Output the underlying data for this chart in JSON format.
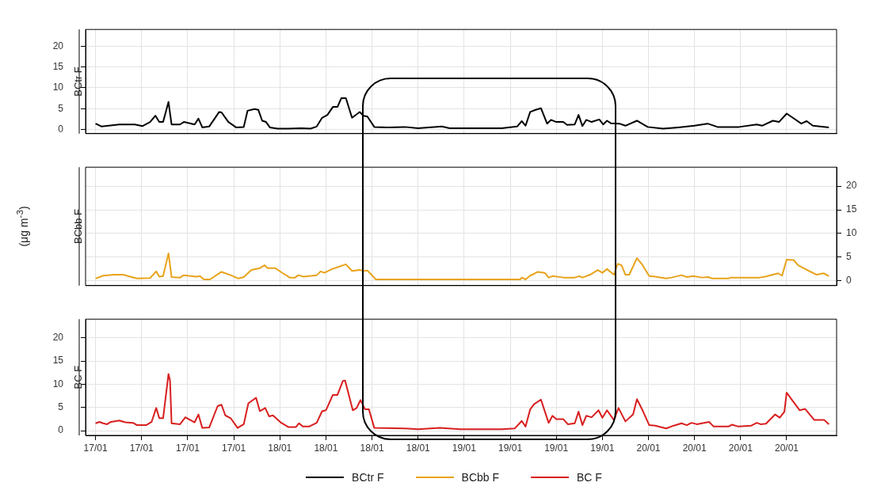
{
  "chart_data": [
    {
      "type": "line",
      "title": "BCtr F",
      "xlim": [
        "--01-16T22:42",
        "--01-21T00:30"
      ],
      "ylim": [
        -1,
        24
      ],
      "yticks": [
        0,
        5,
        10,
        15,
        20
      ],
      "xticks": [
        {
          "value": "--01-17T00:00",
          "label": "17/01"
        },
        {
          "value": "--01-17T06:00",
          "label": "17/01"
        },
        {
          "value": "--01-17T12:00",
          "label": "17/01"
        },
        {
          "value": "--01-17T18:00",
          "label": "17/01"
        },
        {
          "value": "--01-18T00:00",
          "label": "18/01"
        },
        {
          "value": "--01-18T06:00",
          "label": "18/01"
        },
        {
          "value": "--01-18T12:00",
          "label": "18/01"
        },
        {
          "value": "--01-18T18:00",
          "label": "18/01"
        },
        {
          "value": "--01-19T00:00",
          "label": "19/01"
        },
        {
          "value": "--01-19T06:00",
          "label": "19/01"
        },
        {
          "value": "--01-19T12:00",
          "label": "19/01"
        },
        {
          "value": "--01-19T18:00",
          "label": "19/01"
        },
        {
          "value": "--01-20T00:00",
          "label": "20/01"
        },
        {
          "value": "--01-20T06:00",
          "label": "20/01"
        },
        {
          "value": "--01-20T12:00",
          "label": "20/01"
        },
        {
          "value": "--01-20T18:00",
          "label": "20/01"
        }
      ],
      "grid": true,
      "tick_labels": "y",
      "marker": "none",
      "line_style": "solid",
      "legend": "bottom",
      "series": [
        {
          "name": "BCtr F",
          "color": "#000000",
          "x": [
            "--01-17T00:00",
            "--01-17T00:48",
            "--01-17T03:06",
            "--01-17T05:06",
            "--01-17T06:06",
            "--01-17T07:06",
            "--01-17T07:48",
            "--01-17T08:18",
            "--01-17T08:48",
            "--01-17T09:30",
            "--01-17T09:54",
            "--01-17T11:00",
            "--01-17T11:30",
            "--01-17T12:54",
            "--01-17T13:24",
            "--01-17T13:54",
            "--01-17T14:48",
            "--01-17T16:06",
            "--01-17T16:24",
            "--01-17T17:18",
            "--01-17T18:18",
            "--01-17T19:18",
            "--01-17T19:48",
            "--01-17T20:42",
            "--01-17T21:12",
            "--01-17T21:42",
            "--01-17T22:12",
            "--01-17T22:42",
            "--01-17T23:42",
            "--01-18T01:06",
            "--01-18T02:48",
            "--01-18T04:00",
            "--01-18T04:48",
            "--01-18T05:30",
            "--01-18T06:12",
            "--01-18T06:54",
            "--01-18T07:30",
            "--01-18T08:00",
            "--01-18T08:36",
            "--01-18T09:24",
            "--01-18T10:24",
            "--01-18T10:54",
            "--01-18T11:24",
            "--01-18T12:18",
            "--01-18T14:00",
            "--01-18T16:18",
            "--01-18T18:00",
            "--01-18T21:06",
            "--01-18T22:06",
            "--01-19T04:54",
            "--01-19T06:54",
            "--01-19T07:30",
            "--01-19T08:00",
            "--01-19T08:36",
            "--01-19T09:18",
            "--01-19T10:00",
            "--01-19T10:48",
            "--01-19T11:18",
            "--01-19T12:00",
            "--01-19T12:54",
            "--01-19T13:24",
            "--01-19T14:24",
            "--01-19T14:54",
            "--01-19T15:24",
            "--01-19T15:54",
            "--01-19T16:36",
            "--01-19T17:36",
            "--01-19T18:06",
            "--01-19T18:36",
            "--01-19T19:06",
            "--01-19T20:12",
            "--01-19T21:00",
            "--01-19T22:30",
            "--01-19T23:54",
            "--01-20T01:54",
            "--01-20T03:54",
            "--01-20T06:00",
            "--01-20T07:42",
            "--01-20T09:00",
            "--01-20T11:48",
            "--01-20T14:06",
            "--01-20T14:48",
            "--01-20T16:12",
            "--01-20T17:00",
            "--01-20T18:00",
            "--01-20T18:48",
            "--01-20T19:54",
            "--01-20T20:36",
            "--01-20T21:24",
            "--01-20T23:30"
          ],
          "values": [
            1.4,
            0.7,
            1.2,
            1.2,
            0.8,
            1.8,
            3.3,
            1.8,
            1.8,
            6.6,
            1.2,
            1.2,
            1.8,
            1.2,
            2.6,
            0.5,
            0.7,
            4.2,
            4.1,
            1.8,
            0.5,
            0.6,
            4.5,
            4.9,
            4.7,
            2.1,
            1.8,
            0.5,
            0.2,
            0.2,
            0.3,
            0.2,
            0.7,
            2.8,
            3.5,
            5.4,
            5.4,
            7.5,
            7.5,
            2.8,
            4.2,
            3.3,
            3.1,
            0.6,
            0.5,
            0.6,
            0.3,
            0.7,
            0.3,
            0.3,
            0.7,
            2.0,
            0.9,
            4.2,
            4.7,
            5.1,
            1.4,
            2.3,
            1.8,
            1.8,
            1.1,
            1.2,
            3.5,
            0.8,
            2.3,
            1.8,
            2.4,
            1.2,
            2.1,
            1.5,
            1.4,
            0.9,
            2.1,
            0.6,
            0.2,
            0.5,
            0.9,
            1.4,
            0.6,
            0.6,
            1.2,
            0.9,
            2.1,
            1.8,
            3.8,
            2.8,
            1.4,
            2.0,
            0.9,
            0.5
          ]
        }
      ]
    },
    {
      "type": "line",
      "title": "BCbb F",
      "ylabel": "(μg m$^{-3}$)",
      "xlim": [
        "--01-16T22:42",
        "--01-21T00:30"
      ],
      "y2lim": [
        -1,
        24
      ],
      "y2ticks": [
        0,
        5,
        10,
        15,
        20
      ],
      "xticks": [
        {
          "value": "--01-17T00:00",
          "label": "17/01"
        },
        {
          "value": "--01-17T06:00",
          "label": "17/01"
        },
        {
          "value": "--01-17T12:00",
          "label": "17/01"
        },
        {
          "value": "--01-17T18:00",
          "label": "17/01"
        },
        {
          "value": "--01-18T00:00",
          "label": "18/01"
        },
        {
          "value": "--01-18T06:00",
          "label": "18/01"
        },
        {
          "value": "--01-18T12:00",
          "label": "18/01"
        },
        {
          "value": "--01-18T18:00",
          "label": "18/01"
        },
        {
          "value": "--01-19T00:00",
          "label": "19/01"
        },
        {
          "value": "--01-19T06:00",
          "label": "19/01"
        },
        {
          "value": "--01-19T12:00",
          "label": "19/01"
        },
        {
          "value": "--01-19T18:00",
          "label": "19/01"
        },
        {
          "value": "--01-20T00:00",
          "label": "20/01"
        },
        {
          "value": "--01-20T06:00",
          "label": "20/01"
        },
        {
          "value": "--01-20T12:00",
          "label": "20/01"
        },
        {
          "value": "--01-20T18:00",
          "label": "20/01"
        }
      ],
      "grid": true,
      "tick_labels": "y",
      "marker": "none",
      "line_style": "solid",
      "legend": "bottom",
      "series": [
        {
          "name": "BCbb F",
          "color": "#e8a31c",
          "axis": "y2",
          "x": [
            "--01-17T00:00",
            "--01-17T01:00",
            "--01-17T02:24",
            "--01-17T03:36",
            "--01-17T04:42",
            "--01-17T05:24",
            "--01-17T07:06",
            "--01-17T07:54",
            "--01-17T08:18",
            "--01-17T08:48",
            "--01-17T09:30",
            "--01-17T09:54",
            "--01-17T11:00",
            "--01-17T11:30",
            "--01-17T13:06",
            "--01-17T13:36",
            "--01-17T14:06",
            "--01-17T14:54",
            "--01-17T16:24",
            "--01-17T17:36",
            "--01-17T18:36",
            "--01-17T19:18",
            "--01-17T20:18",
            "--01-17T21:24",
            "--01-17T22:00",
            "--01-17T22:24",
            "--01-17T23:24",
            "--01-18T00:24",
            "--01-18T01:18",
            "--01-18T02:00",
            "--01-18T02:24",
            "--01-18T03:06",
            "--01-18T04:48",
            "--01-18T05:18",
            "--01-18T05:48",
            "--01-18T06:48",
            "--01-18T07:54",
            "--01-18T08:36",
            "--01-18T09:24",
            "--01-18T10:24",
            "--01-18T10:54",
            "--01-18T11:24",
            "--01-18T12:30",
            "--01-18T23:48",
            "--01-19T07:18",
            "--01-19T07:30",
            "--01-19T08:00",
            "--01-19T08:36",
            "--01-19T09:36",
            "--01-19T10:30",
            "--01-19T11:00",
            "--01-19T11:30",
            "--01-19T13:00",
            "--01-19T14:24",
            "--01-19T15:00",
            "--01-19T15:24",
            "--01-19T16:24",
            "--01-19T17:24",
            "--01-19T18:00",
            "--01-19T18:36",
            "--01-19T19:30",
            "--01-19T20:00",
            "--01-19T20:30",
            "--01-19T21:00",
            "--01-19T21:30",
            "--01-19T22:30",
            "--01-19T23:12",
            "--01-20T00:06",
            "--01-20T00:54",
            "--01-20T02:18",
            "--01-20T03:00",
            "--01-20T04:18",
            "--01-20T05:00",
            "--01-20T05:48",
            "--01-20T07:00",
            "--01-20T07:48",
            "--01-20T08:18",
            "--01-20T10:24",
            "--01-20T10:42",
            "--01-20T14:30",
            "--01-20T15:12",
            "--01-20T16:12",
            "--01-20T16:54",
            "--01-20T17:24",
            "--01-20T18:00",
            "--01-20T18:54",
            "--01-20T19:30",
            "--01-20T20:54",
            "--01-20T21:54",
            "--01-20T22:48",
            "--01-20T23:30"
          ],
          "values": [
            0.5,
            1.1,
            1.3,
            1.3,
            0.8,
            0.5,
            0.6,
            2.0,
            0.9,
            1.0,
            5.8,
            0.8,
            0.7,
            1.2,
            0.9,
            1.0,
            0.3,
            0.3,
            1.9,
            1.2,
            0.5,
            0.8,
            2.3,
            2.7,
            3.3,
            2.7,
            2.7,
            1.6,
            0.7,
            0.7,
            1.2,
            0.9,
            1.2,
            2.0,
            1.7,
            2.5,
            3.1,
            3.5,
            2.1,
            2.3,
            2.1,
            2.2,
            0.3,
            0.3,
            0.3,
            0.7,
            0.3,
            1.1,
            1.9,
            1.7,
            0.7,
            1.0,
            0.7,
            0.7,
            1.0,
            0.7,
            1.3,
            2.3,
            1.7,
            2.5,
            1.3,
            3.6,
            3.3,
            1.3,
            1.3,
            4.8,
            3.4,
            1.0,
            0.9,
            0.5,
            0.7,
            1.2,
            0.8,
            1.0,
            0.7,
            0.8,
            0.5,
            0.5,
            0.7,
            0.7,
            0.9,
            1.3,
            1.6,
            1.1,
            4.5,
            4.4,
            3.3,
            2.1,
            1.3,
            1.6,
            1.0
          ]
        }
      ]
    },
    {
      "type": "line",
      "title": "BC F",
      "xlim": [
        "--01-16T22:42",
        "--01-21T00:30"
      ],
      "ylim": [
        -1,
        24
      ],
      "yticks": [
        0,
        5,
        10,
        15,
        20
      ],
      "xticks": [
        {
          "value": "--01-17T00:00",
          "label": "17/01"
        },
        {
          "value": "--01-17T06:00",
          "label": "17/01"
        },
        {
          "value": "--01-17T12:00",
          "label": "17/01"
        },
        {
          "value": "--01-17T18:00",
          "label": "17/01"
        },
        {
          "value": "--01-18T00:00",
          "label": "18/01"
        },
        {
          "value": "--01-18T06:00",
          "label": "18/01"
        },
        {
          "value": "--01-18T12:00",
          "label": "18/01"
        },
        {
          "value": "--01-18T18:00",
          "label": "18/01"
        },
        {
          "value": "--01-19T00:00",
          "label": "19/01"
        },
        {
          "value": "--01-19T06:00",
          "label": "19/01"
        },
        {
          "value": "--01-19T12:00",
          "label": "19/01"
        },
        {
          "value": "--01-19T18:00",
          "label": "19/01"
        },
        {
          "value": "--01-20T00:00",
          "label": "20/01"
        },
        {
          "value": "--01-20T06:00",
          "label": "20/01"
        },
        {
          "value": "--01-20T12:00",
          "label": "20/01"
        },
        {
          "value": "--01-20T18:00",
          "label": "20/01"
        }
      ],
      "grid": true,
      "marker": "none",
      "line_style": "solid",
      "legend": "bottom",
      "series": [
        {
          "name": "BC F",
          "color": "#d81e1e",
          "x": [
            "--01-17T00:00",
            "--01-17T00:30",
            "--01-17T01:00",
            "--01-17T01:30",
            "--01-17T02:00",
            "--01-17T03:06",
            "--01-17T03:54",
            "--01-17T04:54",
            "--01-17T05:24",
            "--01-17T06:36",
            "--01-17T07:18",
            "--01-17T07:54",
            "--01-17T08:18",
            "--01-17T08:48",
            "--01-17T09:30",
            "--01-17T09:42",
            "--01-17T09:54",
            "--01-17T11:00",
            "--01-17T11:42",
            "--01-17T12:54",
            "--01-17T13:24",
            "--01-17T13:54",
            "--01-17T14:48",
            "--01-17T15:54",
            "--01-17T16:24",
            "--01-17T16:54",
            "--01-17T17:36",
            "--01-17T18:30",
            "--01-17T19:18",
            "--01-17T19:54",
            "--01-17T20:54",
            "--01-17T21:24",
            "--01-17T22:06",
            "--01-17T22:36",
            "--01-17T23:06",
            "--01-18T00:06",
            "--01-18T01:06",
            "--01-18T02:06",
            "--01-18T02:30",
            "--01-18T03:00",
            "--01-18T03:48",
            "--01-18T04:48",
            "--01-18T05:30",
            "--01-18T06:00",
            "--01-18T06:54",
            "--01-18T07:30",
            "--01-18T08:12",
            "--01-18T08:30",
            "--01-18T09:30",
            "--01-18T10:00",
            "--01-18T10:30",
            "--01-18T11:06",
            "--01-18T11:36",
            "--01-18T12:18",
            "--01-18T16:18",
            "--01-18T18:00",
            "--01-18T20:48",
            "--01-18T23:30",
            "--01-19T04:54",
            "--01-19T06:36",
            "--01-19T07:30",
            "--01-19T08:00",
            "--01-19T08:36",
            "--01-19T09:06",
            "--01-19T10:00",
            "--01-19T11:00",
            "--01-19T11:30",
            "--01-19T12:00",
            "--01-19T12:54",
            "--01-19T13:30",
            "--01-19T14:24",
            "--01-19T14:54",
            "--01-19T15:24",
            "--01-19T15:54",
            "--01-19T16:36",
            "--01-19T17:30",
            "--01-19T18:00",
            "--01-19T18:36",
            "--01-19T19:30",
            "--01-19T20:06",
            "--01-19T21:00",
            "--01-19T22:00",
            "--01-19T22:30",
            "--01-19T23:12",
            "--01-20T00:06",
            "--01-20T00:54",
            "--01-20T02:18",
            "--01-20T03:18",
            "--01-20T04:18",
            "--01-20T05:00",
            "--01-20T05:36",
            "--01-20T06:18",
            "--01-20T07:54",
            "--01-20T08:30",
            "--01-20T10:24",
            "--01-20T10:54",
            "--01-20T11:42",
            "--01-20T13:24",
            "--01-20T14:06",
            "--01-20T14:36",
            "--01-20T15:18",
            "--01-20T16:30",
            "--01-20T17:06",
            "--01-20T17:42",
            "--01-20T18:00",
            "--01-20T18:42",
            "--01-20T19:42",
            "--01-20T20:24",
            "--01-20T21:36",
            "--01-20T22:54",
            "--01-20T23:30"
          ],
          "values": [
            1.6,
            1.9,
            1.6,
            1.4,
            1.9,
            2.2,
            1.8,
            1.7,
            1.2,
            1.2,
            1.9,
            4.9,
            2.7,
            2.7,
            12.2,
            10.8,
            1.6,
            1.4,
            2.9,
            1.8,
            3.5,
            0.6,
            0.7,
            5.3,
            5.6,
            3.3,
            2.7,
            0.6,
            1.4,
            5.9,
            7.1,
            4.2,
            4.9,
            3.1,
            3.3,
            1.8,
            0.8,
            0.8,
            1.6,
            0.9,
            0.9,
            1.7,
            4.2,
            4.4,
            7.7,
            7.7,
            10.7,
            10.8,
            4.4,
            4.9,
            6.6,
            4.6,
            4.6,
            0.6,
            0.5,
            0.3,
            0.6,
            0.3,
            0.3,
            0.5,
            2.1,
            0.9,
            4.6,
            5.7,
            6.7,
            1.7,
            3.2,
            2.5,
            2.5,
            1.4,
            1.6,
            4.1,
            1.2,
            3.2,
            2.9,
            4.4,
            2.8,
            4.4,
            2.3,
            4.9,
            2.0,
            3.5,
            6.8,
            4.5,
            1.2,
            1.1,
            0.5,
            1.1,
            1.6,
            1.2,
            1.7,
            1.4,
            1.9,
            0.9,
            0.9,
            1.3,
            0.9,
            1.1,
            1.7,
            1.4,
            1.5,
            3.5,
            2.8,
            4.1,
            8.2,
            6.6,
            4.4,
            4.7,
            2.3,
            2.3,
            1.4
          ]
        }
      ]
    }
  ]
}
